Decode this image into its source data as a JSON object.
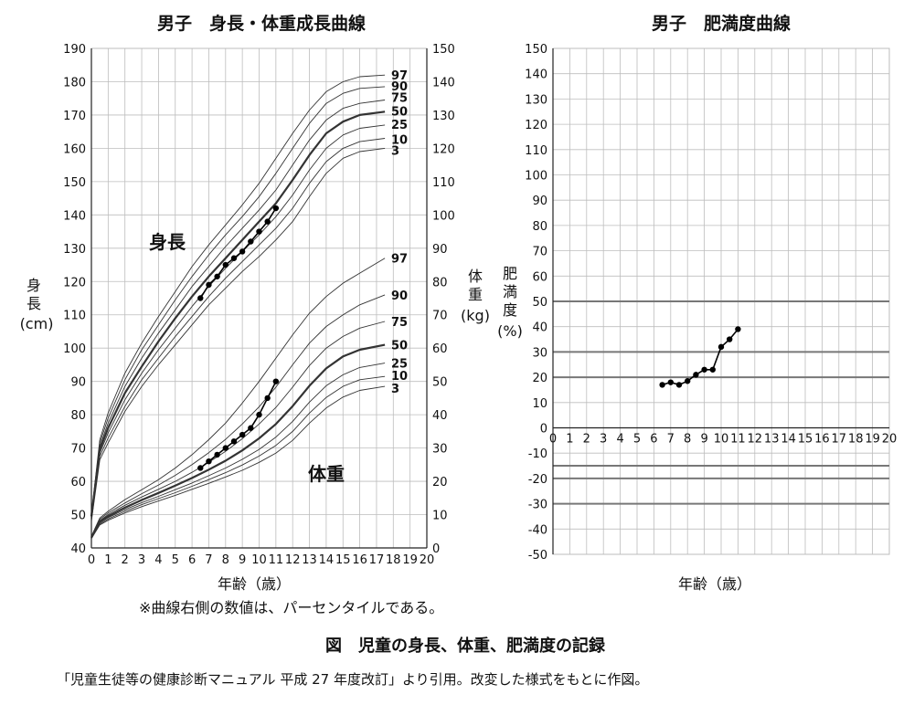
{
  "note": "※曲線右側の数値は、パーセンタイルである。",
  "caption": "図　児童の身長、体重、肥満度の記録",
  "source": "「児童生徒等の健康診断マニュアル 平成 27 年度改訂」より引用。改変した様式をもとに作図。",
  "chart_data": [
    {
      "type": "line",
      "title": "男子　身長・体重成長曲線",
      "xlabel": "年齢（歳）",
      "x_ticks": [
        0,
        1,
        2,
        3,
        4,
        5,
        6,
        7,
        8,
        9,
        10,
        11,
        12,
        13,
        14,
        15,
        16,
        17,
        18,
        19,
        20
      ],
      "xlim": [
        0,
        20
      ],
      "y_left": {
        "label_chars": [
          "身",
          "長"
        ],
        "unit": "(cm)",
        "ylim": [
          40,
          190
        ],
        "ticks": [
          40,
          50,
          60,
          70,
          80,
          90,
          100,
          110,
          120,
          130,
          140,
          150,
          160,
          170,
          180,
          190
        ]
      },
      "y_right": {
        "label_chars": [
          "体",
          "重"
        ],
        "unit": "(kg)",
        "ylim": [
          0,
          150
        ],
        "ticks": [
          0,
          10,
          20,
          30,
          40,
          50,
          60,
          70,
          80,
          90,
          100,
          110,
          120,
          130,
          140,
          150
        ]
      },
      "grid": true,
      "annotations": {
        "height": "身長",
        "weight": "体重"
      },
      "height_percentile_labels": [
        "97",
        "90",
        "75",
        "50",
        "25",
        "10",
        "3"
      ],
      "weight_percentile_labels": [
        "97",
        "90",
        "75",
        "50",
        "25",
        "10",
        "3"
      ],
      "height_curves_cm": {
        "x": [
          0,
          0.5,
          1,
          2,
          3,
          4,
          5,
          6,
          7,
          8,
          9,
          10,
          11,
          12,
          13,
          14,
          15,
          16,
          17.5
        ],
        "series": [
          {
            "name": "97",
            "values": [
              50,
              72.5,
              80.5,
              92.5,
              101.5,
              109.5,
              117,
              124.5,
              131,
              137,
              143,
              149.5,
              157,
              164.5,
              171.5,
              177,
              180,
              181.5,
              182
            ]
          },
          {
            "name": "90",
            "values": [
              50,
              71.5,
              79,
              90.5,
              99.5,
              107,
              114.5,
              121.5,
              128,
              134,
              139.5,
              145.5,
              152.5,
              160,
              167.5,
              173.5,
              176.5,
              178,
              178.5
            ]
          },
          {
            "name": "75",
            "values": [
              50,
              70.5,
              77.5,
              88.5,
              97,
              104.5,
              111.5,
              118.5,
              124.5,
              130.5,
              136,
              141.5,
              147.5,
              155,
              162.5,
              168.5,
              172,
              173.5,
              174.5
            ]
          },
          {
            "name": "50",
            "values": [
              49.5,
              69.5,
              76,
              86.5,
              94.5,
              102,
              109,
              115.5,
              121.5,
              127,
              132.5,
              138,
              143.5,
              150.5,
              158,
              164.5,
              168,
              170,
              171
            ]
          },
          {
            "name": "25",
            "values": [
              49,
              68.5,
              74.5,
              84.5,
              92.5,
              99.5,
              106,
              112.5,
              118.5,
              124,
              129,
              134,
              139.5,
              146,
              153.5,
              160,
              164,
              166,
              167
            ]
          },
          {
            "name": "10",
            "values": [
              48.5,
              67.5,
              73,
              82.5,
              90.5,
              97,
              103.5,
              109.5,
              115.5,
              121,
              126,
              131,
              136,
              142,
              149.5,
              156,
              160,
              162,
              163
            ]
          },
          {
            "name": "3",
            "values": [
              48,
              66.5,
              71.5,
              81,
              88.5,
              95,
              101,
              107,
              113,
              118,
              123,
              127.5,
              132.5,
              138,
              145.5,
              152.5,
              157,
              159,
              160
            ]
          }
        ]
      },
      "weight_curves_kg": {
        "x": [
          0,
          0.5,
          1,
          2,
          3,
          4,
          5,
          6,
          7,
          8,
          9,
          10,
          11,
          12,
          13,
          14,
          15,
          16,
          17.5
        ],
        "series": [
          {
            "name": "97",
            "values": [
              3.5,
              9,
              11,
              14.5,
              17.5,
              20.5,
              24,
              28,
              32.5,
              37.5,
              43.5,
              50,
              57,
              64,
              70.5,
              75.5,
              79.5,
              82.5,
              87
            ]
          },
          {
            "name": "90",
            "values": [
              3.3,
              8.6,
              10.5,
              13.5,
              16.3,
              18.9,
              21.8,
              25,
              28.6,
              32.6,
              37.2,
              42.4,
              48.3,
              55,
              61.5,
              66.5,
              70,
              73,
              76
            ]
          },
          {
            "name": "75",
            "values": [
              3.2,
              8.2,
              10,
              12.8,
              15.3,
              17.6,
              20,
              22.7,
              25.7,
              29,
              32.8,
              37.2,
              42.2,
              48.3,
              54.8,
              60,
              63.5,
              66,
              68
            ]
          },
          {
            "name": "50",
            "values": [
              3.1,
              7.9,
              9.5,
              12.1,
              14.4,
              16.5,
              18.7,
              21,
              23.5,
              26.2,
              29.3,
              32.9,
              37.2,
              42.6,
              48.7,
              53.9,
              57.5,
              59.5,
              61
            ]
          },
          {
            "name": "25",
            "values": [
              3,
              7.5,
              9.1,
              11.5,
              13.6,
              15.5,
              17.5,
              19.5,
              21.7,
              24,
              26.6,
              29.6,
              33.3,
              38,
              43.8,
              48.7,
              52,
              54.2,
              55.5
            ]
          },
          {
            "name": "10",
            "values": [
              2.9,
              7.2,
              8.7,
              11,
              13,
              14.8,
              16.6,
              18.5,
              20.5,
              22.6,
              24.9,
              27.6,
              30.8,
              35,
              40.5,
              45.2,
              48.5,
              50.5,
              51.5
            ]
          },
          {
            "name": "3",
            "values": [
              2.8,
              6.9,
              8.3,
              10.5,
              12.4,
              14.1,
              15.8,
              17.6,
              19.4,
              21.3,
              23.3,
              25.7,
              28.5,
              32.3,
              37.5,
              42,
              45.3,
              47.3,
              48.5
            ]
          }
        ]
      },
      "height_record_cm": {
        "x": [
          6.5,
          7,
          7.5,
          8,
          8.5,
          9,
          9.5,
          10,
          10.5,
          11
        ],
        "values": [
          115,
          119,
          121.5,
          125,
          127,
          129,
          132,
          135,
          138,
          142
        ]
      },
      "weight_record_kg": {
        "x": [
          6.5,
          7,
          7.5,
          8,
          8.5,
          9,
          9.5,
          10,
          10.5,
          11
        ],
        "values": [
          24,
          26,
          28,
          30,
          32,
          34,
          36,
          40,
          45,
          50
        ]
      }
    },
    {
      "type": "line",
      "title": "男子　肥満度曲線",
      "xlabel": "年齢（歳）",
      "ylabel_chars": [
        "肥",
        "満",
        "度"
      ],
      "yunit": "(%)",
      "x_ticks": [
        0,
        1,
        2,
        3,
        4,
        5,
        6,
        7,
        8,
        9,
        10,
        11,
        12,
        13,
        14,
        15,
        16,
        17,
        18,
        19,
        20
      ],
      "xlim": [
        0,
        20
      ],
      "y_ticks": [
        150,
        140,
        130,
        120,
        110,
        100,
        90,
        80,
        70,
        60,
        50,
        40,
        30,
        20,
        10,
        0,
        -10,
        -20,
        -30,
        -40,
        -50
      ],
      "ylim": [
        -50,
        150
      ],
      "grid": true,
      "reference_lines": [
        50,
        30,
        20,
        -15,
        -20,
        -30
      ],
      "record": {
        "x": [
          6.5,
          7,
          7.5,
          8,
          8.5,
          9,
          9.5,
          10,
          10.5,
          11
        ],
        "values": [
          17,
          18,
          17,
          18.5,
          21,
          23,
          23,
          32,
          35,
          39
        ]
      }
    }
  ]
}
